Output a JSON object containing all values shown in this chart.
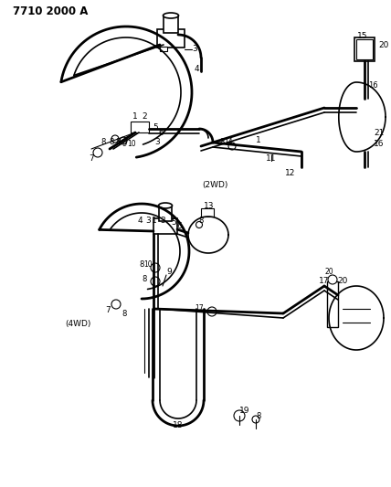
{
  "title": "7710 2000 A",
  "bg_color": "#ffffff",
  "fg_color": "#000000",
  "fig_width": 4.28,
  "fig_height": 5.33,
  "dpi": 100,
  "label_2wd": "(2WD)",
  "label_4wd": "(4WD)"
}
